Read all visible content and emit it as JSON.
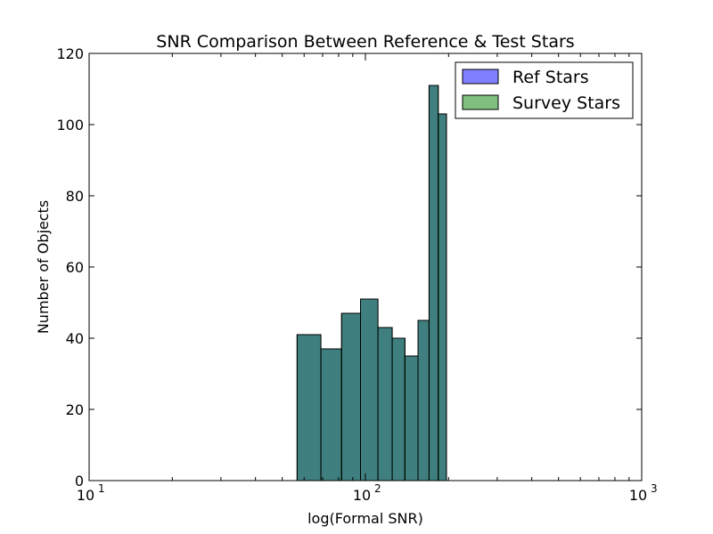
{
  "chart_data": {
    "type": "bar",
    "title": "SNR Comparison Between Reference & Test Stars",
    "xlabel": "log(Formal SNR)",
    "ylabel": "Number of Objects",
    "xscale": "log",
    "xlim": [
      10,
      1000
    ],
    "ylim": [
      0,
      120
    ],
    "xticks": [
      10,
      100,
      1000
    ],
    "xtick_bases": [
      "10",
      "10",
      "10"
    ],
    "xtick_exponents": [
      "1",
      "2",
      "3"
    ],
    "yticks": [
      "0",
      "20",
      "40",
      "60",
      "80",
      "100",
      "120"
    ],
    "grid": false,
    "legend_position": "top-right",
    "series": [
      {
        "name": "Ref Stars",
        "color": "#0000ff",
        "alpha": 0.5,
        "bins": [
          {
            "x0": 56.6,
            "x1": 69.0,
            "count": 41
          },
          {
            "x0": 69.0,
            "x1": 82.0,
            "count": 37
          },
          {
            "x0": 82.0,
            "x1": 96.0,
            "count": 47
          },
          {
            "x0": 96.0,
            "x1": 111.0,
            "count": 51
          },
          {
            "x0": 111.0,
            "x1": 125.0,
            "count": 43
          },
          {
            "x0": 125.0,
            "x1": 139.0,
            "count": 40
          },
          {
            "x0": 139.0,
            "x1": 155.0,
            "count": 35
          },
          {
            "x0": 155.0,
            "x1": 170.0,
            "count": 45
          },
          {
            "x0": 170.0,
            "x1": 183.5,
            "count": 111
          },
          {
            "x0": 183.5,
            "x1": 196.5,
            "count": 103
          }
        ]
      },
      {
        "name": "Survey Stars",
        "color": "#008000",
        "alpha": 0.5,
        "bins": [
          {
            "x0": 56.6,
            "x1": 69.0,
            "count": 41
          },
          {
            "x0": 69.0,
            "x1": 82.0,
            "count": 37
          },
          {
            "x0": 82.0,
            "x1": 96.0,
            "count": 47
          },
          {
            "x0": 96.0,
            "x1": 111.0,
            "count": 51
          },
          {
            "x0": 111.0,
            "x1": 125.0,
            "count": 43
          },
          {
            "x0": 125.0,
            "x1": 139.0,
            "count": 40
          },
          {
            "x0": 139.0,
            "x1": 155.0,
            "count": 35
          },
          {
            "x0": 155.0,
            "x1": 170.0,
            "count": 45
          },
          {
            "x0": 170.0,
            "x1": 183.5,
            "count": 111
          },
          {
            "x0": 183.5,
            "x1": 196.5,
            "count": 103
          }
        ]
      }
    ]
  }
}
